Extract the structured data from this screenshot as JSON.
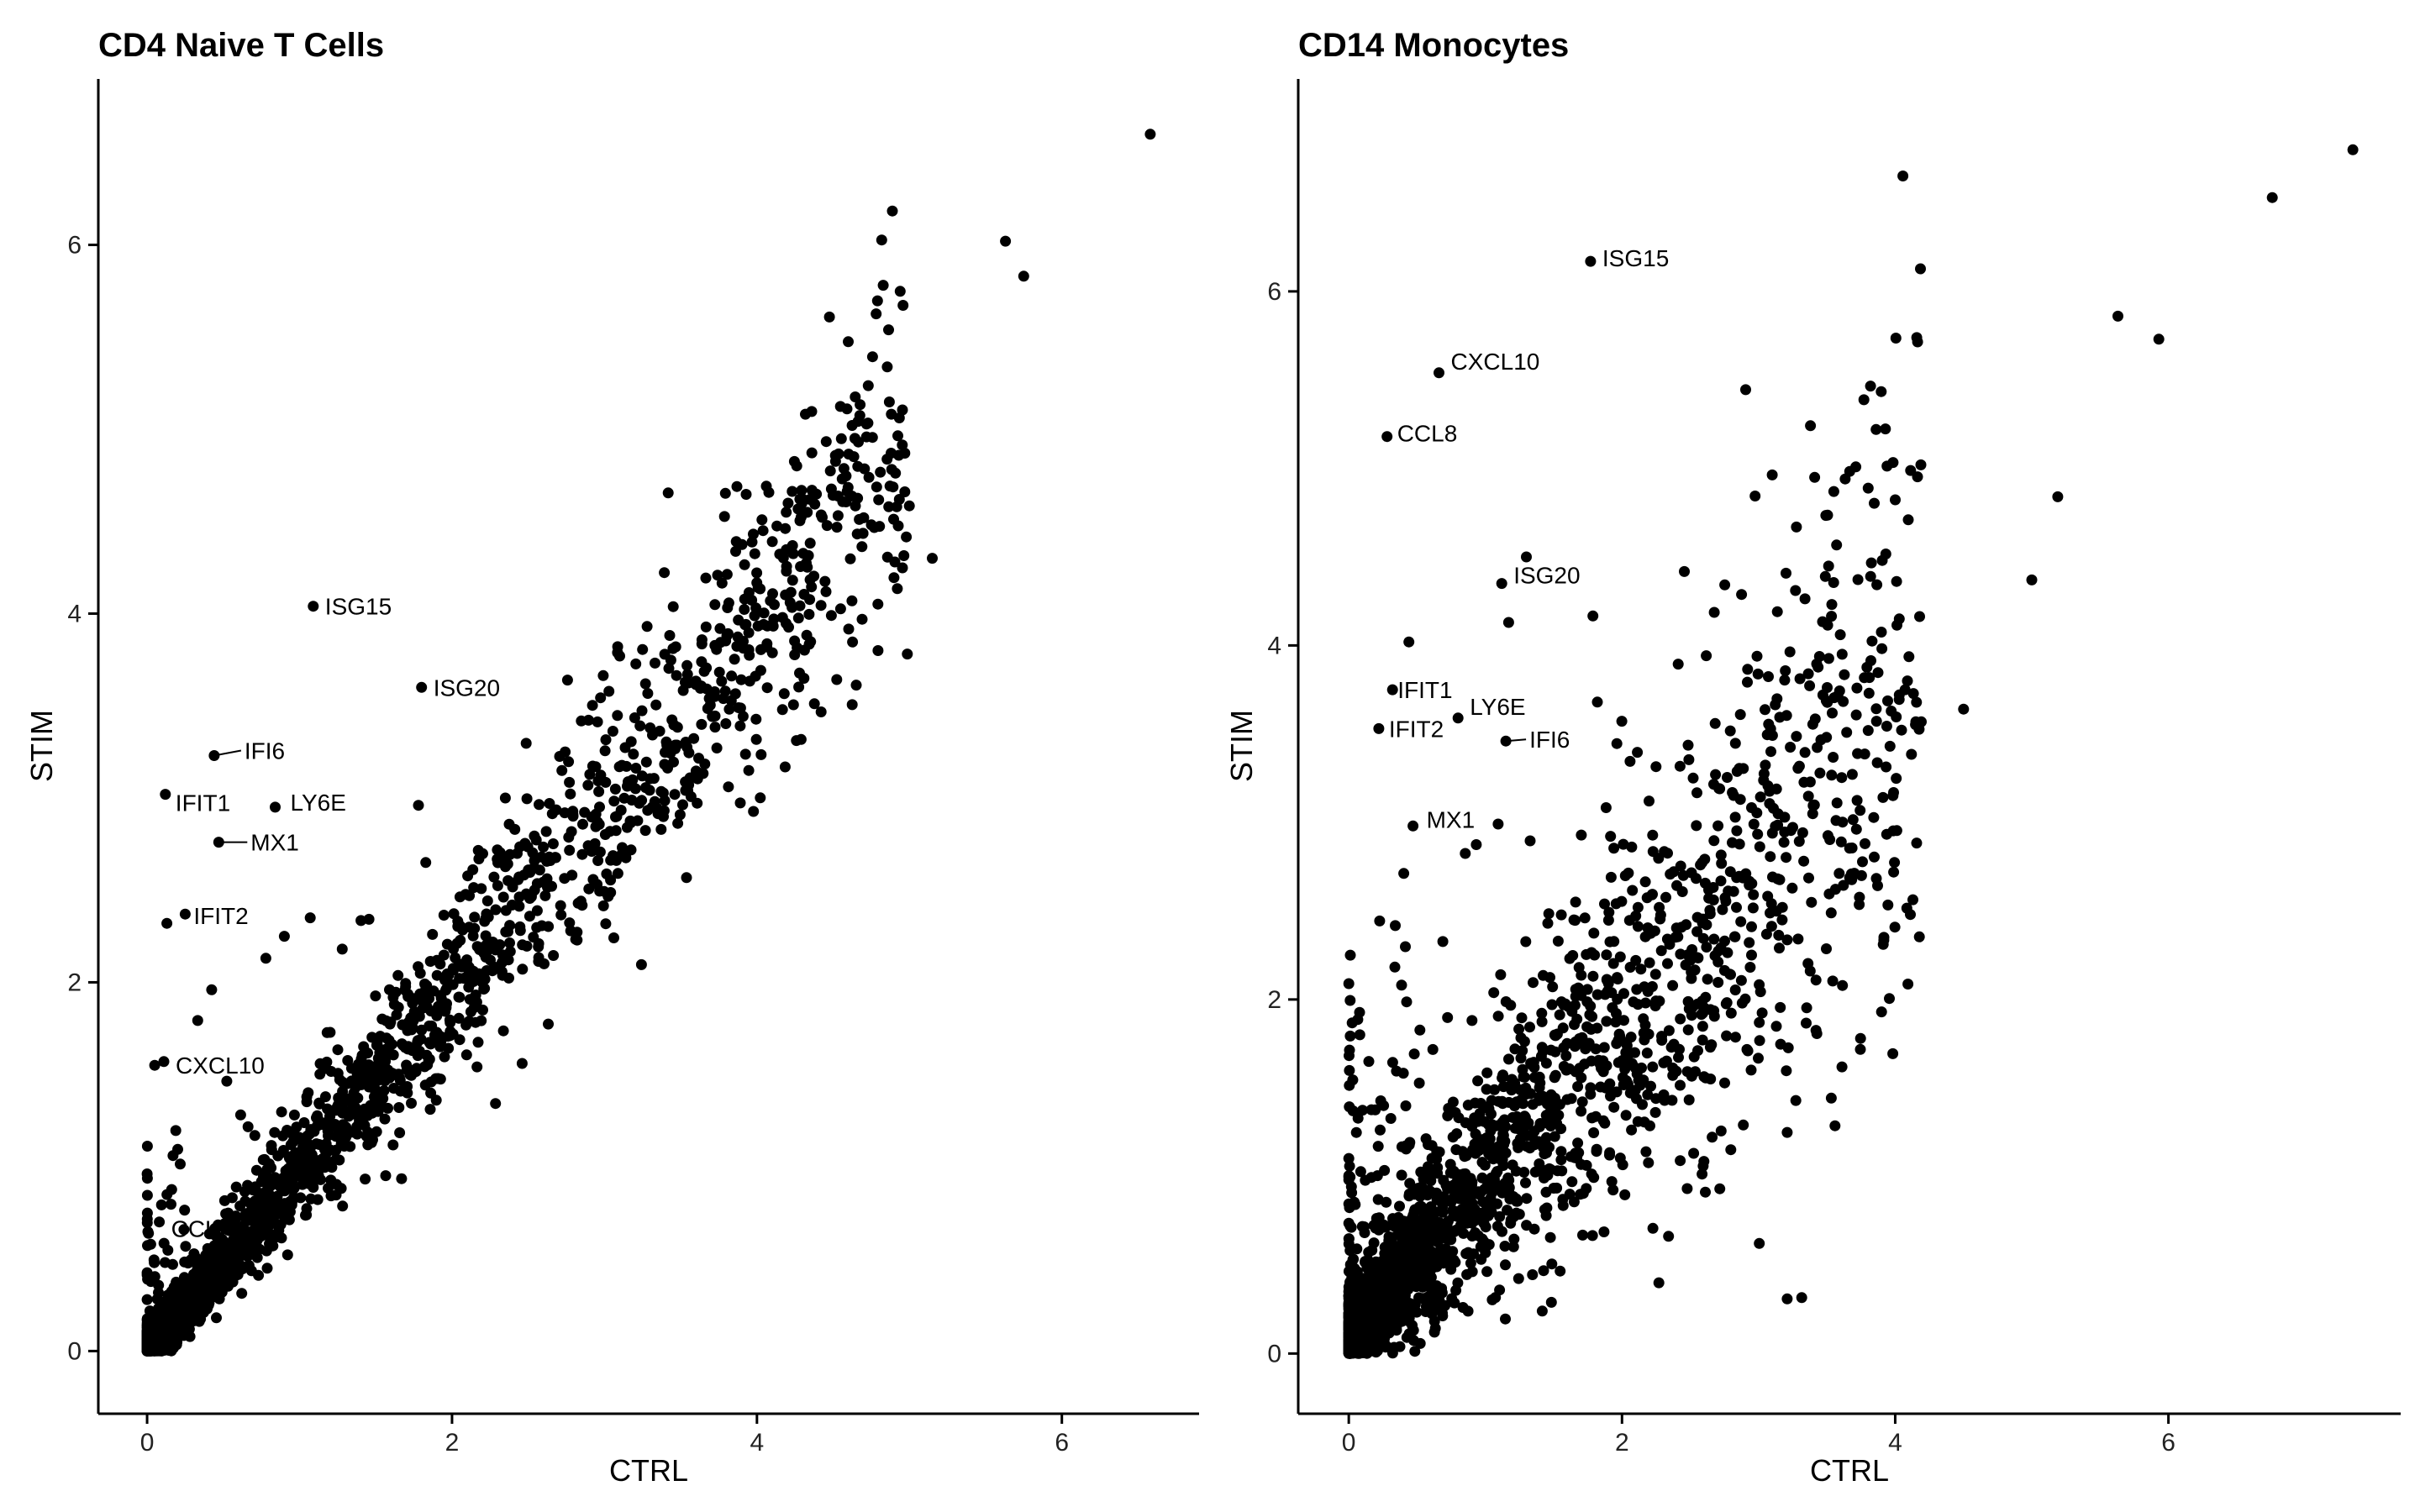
{
  "chart_data": [
    {
      "type": "scatter",
      "title": "CD4 Naive T Cells",
      "xlabel": "CTRL",
      "ylabel": "STIM",
      "xlim": [
        -0.32,
        6.9
      ],
      "ylim": [
        -0.34,
        6.9
      ],
      "xticks": [
        0,
        2,
        4,
        6
      ],
      "yticks": [
        0,
        2,
        4,
        6
      ],
      "grid": false,
      "highlighted_points": [
        {
          "x": 6.58,
          "y": 6.6
        },
        {
          "x": 5.63,
          "y": 6.02
        },
        {
          "x": 5.75,
          "y": 5.83
        },
        {
          "x": 5.15,
          "y": 4.3
        },
        {
          "x": 4.97,
          "y": 4.87
        },
        {
          "x": 4.88,
          "y": 4.87
        },
        {
          "x": 4.04,
          "y": 4.45
        },
        {
          "x": 3.1,
          "y": 3.77
        },
        {
          "x": 2.35,
          "y": 3.0
        },
        {
          "x": 2.46,
          "y": 1.56
        },
        {
          "x": 1.78,
          "y": 2.96
        },
        {
          "x": 1.28,
          "y": 2.18
        },
        {
          "x": 1.07,
          "y": 2.35
        },
        {
          "x": 0.9,
          "y": 2.25
        },
        {
          "x": 0.13,
          "y": 2.32
        },
        {
          "x": 0.05,
          "y": 1.55
        }
      ],
      "labeled_points": [
        {
          "gene": "ISG15",
          "x": 1.09,
          "y": 4.04
        },
        {
          "gene": "ISG20",
          "x": 1.8,
          "y": 3.6
        },
        {
          "gene": "IFI6",
          "x": 0.44,
          "y": 3.23
        },
        {
          "gene": "IFIT1",
          "x": 0.12,
          "y": 3.02
        },
        {
          "gene": "LY6E",
          "x": 0.84,
          "y": 2.95
        },
        {
          "gene": "MX1",
          "x": 0.47,
          "y": 2.76
        },
        {
          "gene": "IFIT2",
          "x": 0.25,
          "y": 2.37
        },
        {
          "gene": "CXCL10",
          "x": 0.11,
          "y": 1.57
        },
        {
          "gene": "CCL",
          "x": 0.08,
          "y": 0.7
        }
      ],
      "dense_cloud": {
        "description": "thousands of genes along the diagonal (STIM ≈ CTRL), densest near the origin",
        "x_range": [
          0,
          5.0
        ],
        "slope": 0.98
      }
    },
    {
      "type": "scatter",
      "title": "CD14 Monocytes",
      "xlabel": "CTRL",
      "ylabel": "STIM",
      "xlim": [
        -0.37,
        7.7
      ],
      "ylim": [
        -0.34,
        7.2
      ],
      "xticks": [
        0,
        2,
        4,
        6
      ],
      "yticks": [
        0,
        2,
        4,
        6
      ],
      "grid": false,
      "highlighted_points": [
        {
          "x": 7.35,
          "y": 6.8
        },
        {
          "x": 6.76,
          "y": 6.53
        },
        {
          "x": 5.63,
          "y": 5.86
        },
        {
          "x": 5.93,
          "y": 5.73
        },
        {
          "x": 5.19,
          "y": 4.84
        },
        {
          "x": 5.0,
          "y": 4.37
        },
        {
          "x": 4.5,
          "y": 3.64
        },
        {
          "x": 4.03,
          "y": 4.15
        },
        {
          "x": 3.86,
          "y": 5.22
        },
        {
          "x": 3.82,
          "y": 4.39
        },
        {
          "x": 3.27,
          "y": 4.31
        },
        {
          "x": 3.9,
          "y": 1.93
        },
        {
          "x": 2.27,
          "y": 0.4
        },
        {
          "x": 1.3,
          "y": 4.5
        },
        {
          "x": 1.17,
          "y": 4.13
        },
        {
          "x": 0.44,
          "y": 4.02
        },
        {
          "x": 1.82,
          "y": 3.68
        }
      ],
      "labeled_points": [
        {
          "gene": "ISG15",
          "x": 1.77,
          "y": 6.17
        },
        {
          "gene": "CXCL10",
          "x": 0.66,
          "y": 5.54
        },
        {
          "gene": "CCL8",
          "x": 0.28,
          "y": 5.18
        },
        {
          "gene": "ISG20",
          "x": 1.12,
          "y": 4.35
        },
        {
          "gene": "IFIT1",
          "x": 0.32,
          "y": 3.75
        },
        {
          "gene": "LY6E",
          "x": 0.8,
          "y": 3.59
        },
        {
          "gene": "IFIT2",
          "x": 0.22,
          "y": 3.53
        },
        {
          "gene": "IFI6",
          "x": 1.15,
          "y": 3.46
        },
        {
          "gene": "MX1",
          "x": 0.47,
          "y": 2.98
        }
      ],
      "dense_cloud": {
        "description": "thousands of genes spread above and along the diagonal, densest near the origin",
        "x_range": [
          0,
          4.2
        ],
        "slope": 0.78
      }
    }
  ]
}
